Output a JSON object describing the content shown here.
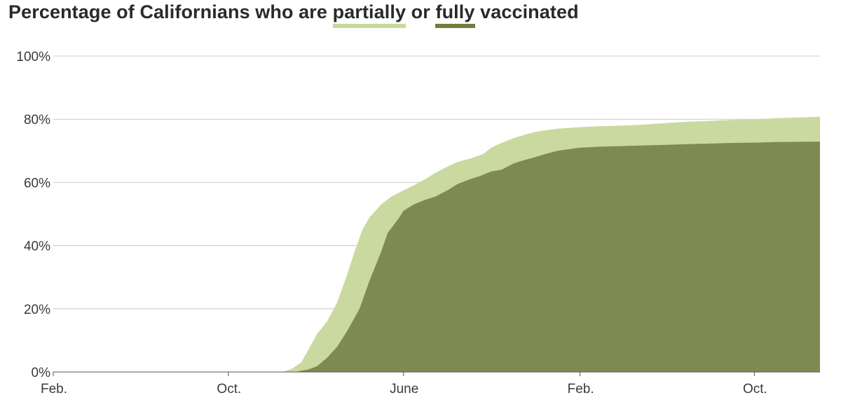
{
  "title": {
    "prefix": "Percentage of Californians who are ",
    "partial_word": "partially",
    "middle": " or ",
    "full_word": "fully",
    "suffix": " vaccinated"
  },
  "colors": {
    "partial": "#cad99f",
    "full": "#7f8a52",
    "grid": "#cccccc",
    "axis": "#555555"
  },
  "chart_data": {
    "type": "area",
    "title": "Percentage of Californians who are partially or fully vaccinated",
    "xlabel": "",
    "ylabel": "",
    "ylim": [
      0,
      100
    ],
    "xlim": [
      "2020-02-01",
      "2022-12-31"
    ],
    "yticks": [
      "0%",
      "20%",
      "40%",
      "60%",
      "80%",
      "100%"
    ],
    "xticks": [
      {
        "label": "Feb.",
        "date": "2020-02-01"
      },
      {
        "label": "Oct.",
        "date": "2020-10-01"
      },
      {
        "label": "June",
        "date": "2021-06-01"
      },
      {
        "label": "Feb.",
        "date": "2022-02-01"
      },
      {
        "label": "Oct.",
        "date": "2022-10-01"
      }
    ],
    "grid": true,
    "series": [
      {
        "name": "partially",
        "points": [
          [
            "2020-12-15",
            0
          ],
          [
            "2020-12-28",
            1
          ],
          [
            "2021-01-10",
            3
          ],
          [
            "2021-01-20",
            7
          ],
          [
            "2021-02-01",
            12
          ],
          [
            "2021-02-15",
            16
          ],
          [
            "2021-03-01",
            22
          ],
          [
            "2021-03-15",
            31
          ],
          [
            "2021-03-25",
            38
          ],
          [
            "2021-04-05",
            45
          ],
          [
            "2021-04-15",
            49
          ],
          [
            "2021-05-01",
            53
          ],
          [
            "2021-05-15",
            55.5
          ],
          [
            "2021-06-01",
            57.5
          ],
          [
            "2021-06-15",
            59
          ],
          [
            "2021-07-01",
            61
          ],
          [
            "2021-07-15",
            63
          ],
          [
            "2021-08-01",
            65
          ],
          [
            "2021-08-15",
            66.5
          ],
          [
            "2021-09-01",
            67.5
          ],
          [
            "2021-09-20",
            69
          ],
          [
            "2021-10-01",
            71
          ],
          [
            "2021-10-15",
            72.5
          ],
          [
            "2021-11-01",
            74
          ],
          [
            "2021-11-15",
            75
          ],
          [
            "2021-12-01",
            76
          ],
          [
            "2021-12-15",
            76.5
          ],
          [
            "2022-01-01",
            77
          ],
          [
            "2022-02-01",
            77.5
          ],
          [
            "2022-03-01",
            77.8
          ],
          [
            "2022-04-01",
            78
          ],
          [
            "2022-05-01",
            78.3
          ],
          [
            "2022-06-01",
            78.8
          ],
          [
            "2022-07-01",
            79.2
          ],
          [
            "2022-08-01",
            79.5
          ],
          [
            "2022-09-01",
            79.8
          ],
          [
            "2022-10-01",
            80
          ],
          [
            "2022-11-01",
            80.3
          ],
          [
            "2022-12-31",
            80.8
          ]
        ]
      },
      {
        "name": "fully",
        "points": [
          [
            "2021-01-01",
            0
          ],
          [
            "2021-01-20",
            0.8
          ],
          [
            "2021-02-01",
            1.8
          ],
          [
            "2021-02-15",
            4.5
          ],
          [
            "2021-03-01",
            8
          ],
          [
            "2021-03-15",
            13
          ],
          [
            "2021-04-01",
            20
          ],
          [
            "2021-04-15",
            29
          ],
          [
            "2021-05-01",
            38
          ],
          [
            "2021-05-10",
            44
          ],
          [
            "2021-05-25",
            48.5
          ],
          [
            "2021-06-01",
            51
          ],
          [
            "2021-06-15",
            53
          ],
          [
            "2021-07-01",
            54.5
          ],
          [
            "2021-07-15",
            55.5
          ],
          [
            "2021-08-01",
            57.5
          ],
          [
            "2021-08-15",
            59.5
          ],
          [
            "2021-09-01",
            61
          ],
          [
            "2021-09-15",
            62
          ],
          [
            "2021-10-01",
            63.5
          ],
          [
            "2021-10-15",
            64
          ],
          [
            "2021-11-01",
            66
          ],
          [
            "2021-11-15",
            67
          ],
          [
            "2021-12-01",
            68
          ],
          [
            "2021-12-15",
            69
          ],
          [
            "2022-01-01",
            70
          ],
          [
            "2022-02-01",
            71
          ],
          [
            "2022-03-01",
            71.3
          ],
          [
            "2022-04-01",
            71.5
          ],
          [
            "2022-05-01",
            71.7
          ],
          [
            "2022-06-01",
            71.9
          ],
          [
            "2022-07-01",
            72.1
          ],
          [
            "2022-08-01",
            72.3
          ],
          [
            "2022-09-01",
            72.5
          ],
          [
            "2022-10-01",
            72.6
          ],
          [
            "2022-11-01",
            72.8
          ],
          [
            "2022-12-31",
            72.9
          ]
        ]
      }
    ]
  }
}
